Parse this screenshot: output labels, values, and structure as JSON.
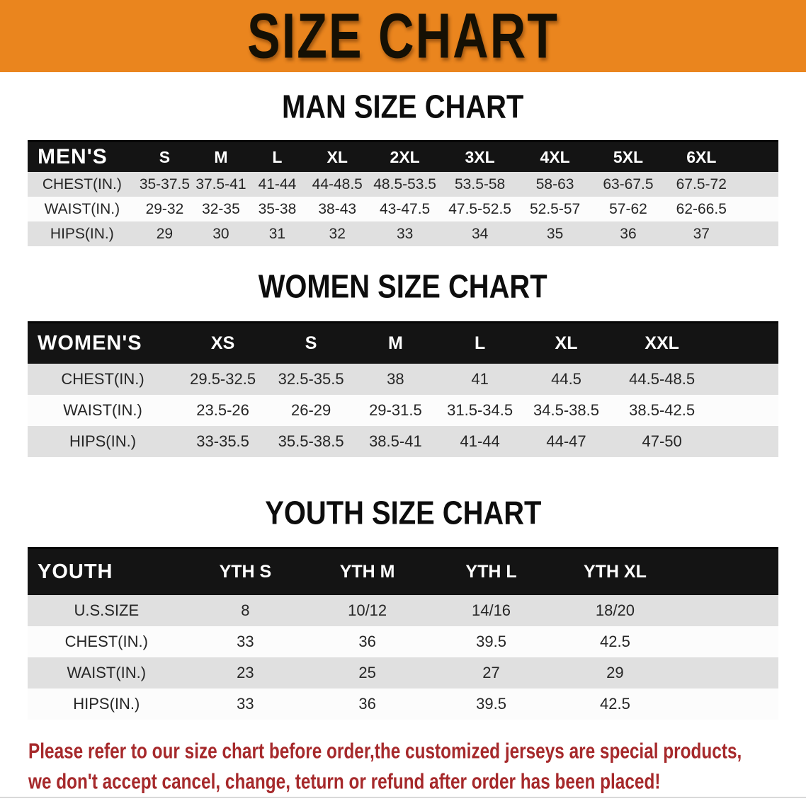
{
  "banner": {
    "title": "SIZE CHART"
  },
  "colors": {
    "banner_bg": "#EA851E",
    "table_header_bg": "#141414",
    "stripe_row": "#E0E0E0",
    "white_row": "#FCFCFC",
    "disclaimer_red": "#A6292B"
  },
  "sections": [
    {
      "heading": "MAN SIZE CHART",
      "table": {
        "label": "MEN'S",
        "columns": [
          "S",
          "M",
          "L",
          "XL",
          "2XL",
          "3XL",
          "4XL",
          "5XL",
          "6XL"
        ],
        "rows": [
          {
            "label": "CHEST(IN.)",
            "values": [
              "35-37.5",
              "37.5-41",
              "41-44",
              "44-48.5",
              "48.5-53.5",
              "53.5-58",
              "58-63",
              "63-67.5",
              "67.5-72"
            ]
          },
          {
            "label": "WAIST(IN.)",
            "values": [
              "29-32",
              "32-35",
              "35-38",
              "38-43",
              "43-47.5",
              "47.5-52.5",
              "52.5-57",
              "57-62",
              "62-66.5"
            ]
          },
          {
            "label": "HIPS(IN.)",
            "values": [
              "29",
              "30",
              "31",
              "32",
              "33",
              "34",
              "35",
              "36",
              "37"
            ]
          }
        ]
      }
    },
    {
      "heading": "WOMEN SIZE CHART",
      "table": {
        "label": "WOMEN'S",
        "columns": [
          "XS",
          "S",
          "M",
          "L",
          "XL",
          "XXL"
        ],
        "rows": [
          {
            "label": "CHEST(IN.)",
            "values": [
              "29.5-32.5",
              "32.5-35.5",
              "38",
              "41",
              "44.5",
              "44.5-48.5"
            ]
          },
          {
            "label": "WAIST(IN.)",
            "values": [
              "23.5-26",
              "26-29",
              "29-31.5",
              "31.5-34.5",
              "34.5-38.5",
              "38.5-42.5"
            ]
          },
          {
            "label": "HIPS(IN.)",
            "values": [
              "33-35.5",
              "35.5-38.5",
              "38.5-41",
              "41-44",
              "44-47",
              "47-50"
            ]
          }
        ]
      }
    },
    {
      "heading": "YOUTH SIZE CHART",
      "table": {
        "label": "YOUTH",
        "columns": [
          "YTH S",
          "YTH M",
          "YTH L",
          "YTH XL"
        ],
        "rows": [
          {
            "label": "U.S.SIZE",
            "values": [
              "8",
              "10/12",
              "14/16",
              "18/20"
            ]
          },
          {
            "label": "CHEST(IN.)",
            "values": [
              "33",
              "36",
              "39.5",
              "42.5"
            ]
          },
          {
            "label": "WAIST(IN.)",
            "values": [
              "23",
              "25",
              "27",
              "29"
            ]
          },
          {
            "label": "HIPS(IN.)",
            "values": [
              "33",
              "36",
              "39.5",
              "42.5"
            ]
          }
        ]
      }
    }
  ],
  "disclaimer": {
    "line1": "Please refer to our size chart before order,the customized jerseys are special products,",
    "line2": "we don't accept cancel, change, teturn or refund after order has been placed!"
  }
}
